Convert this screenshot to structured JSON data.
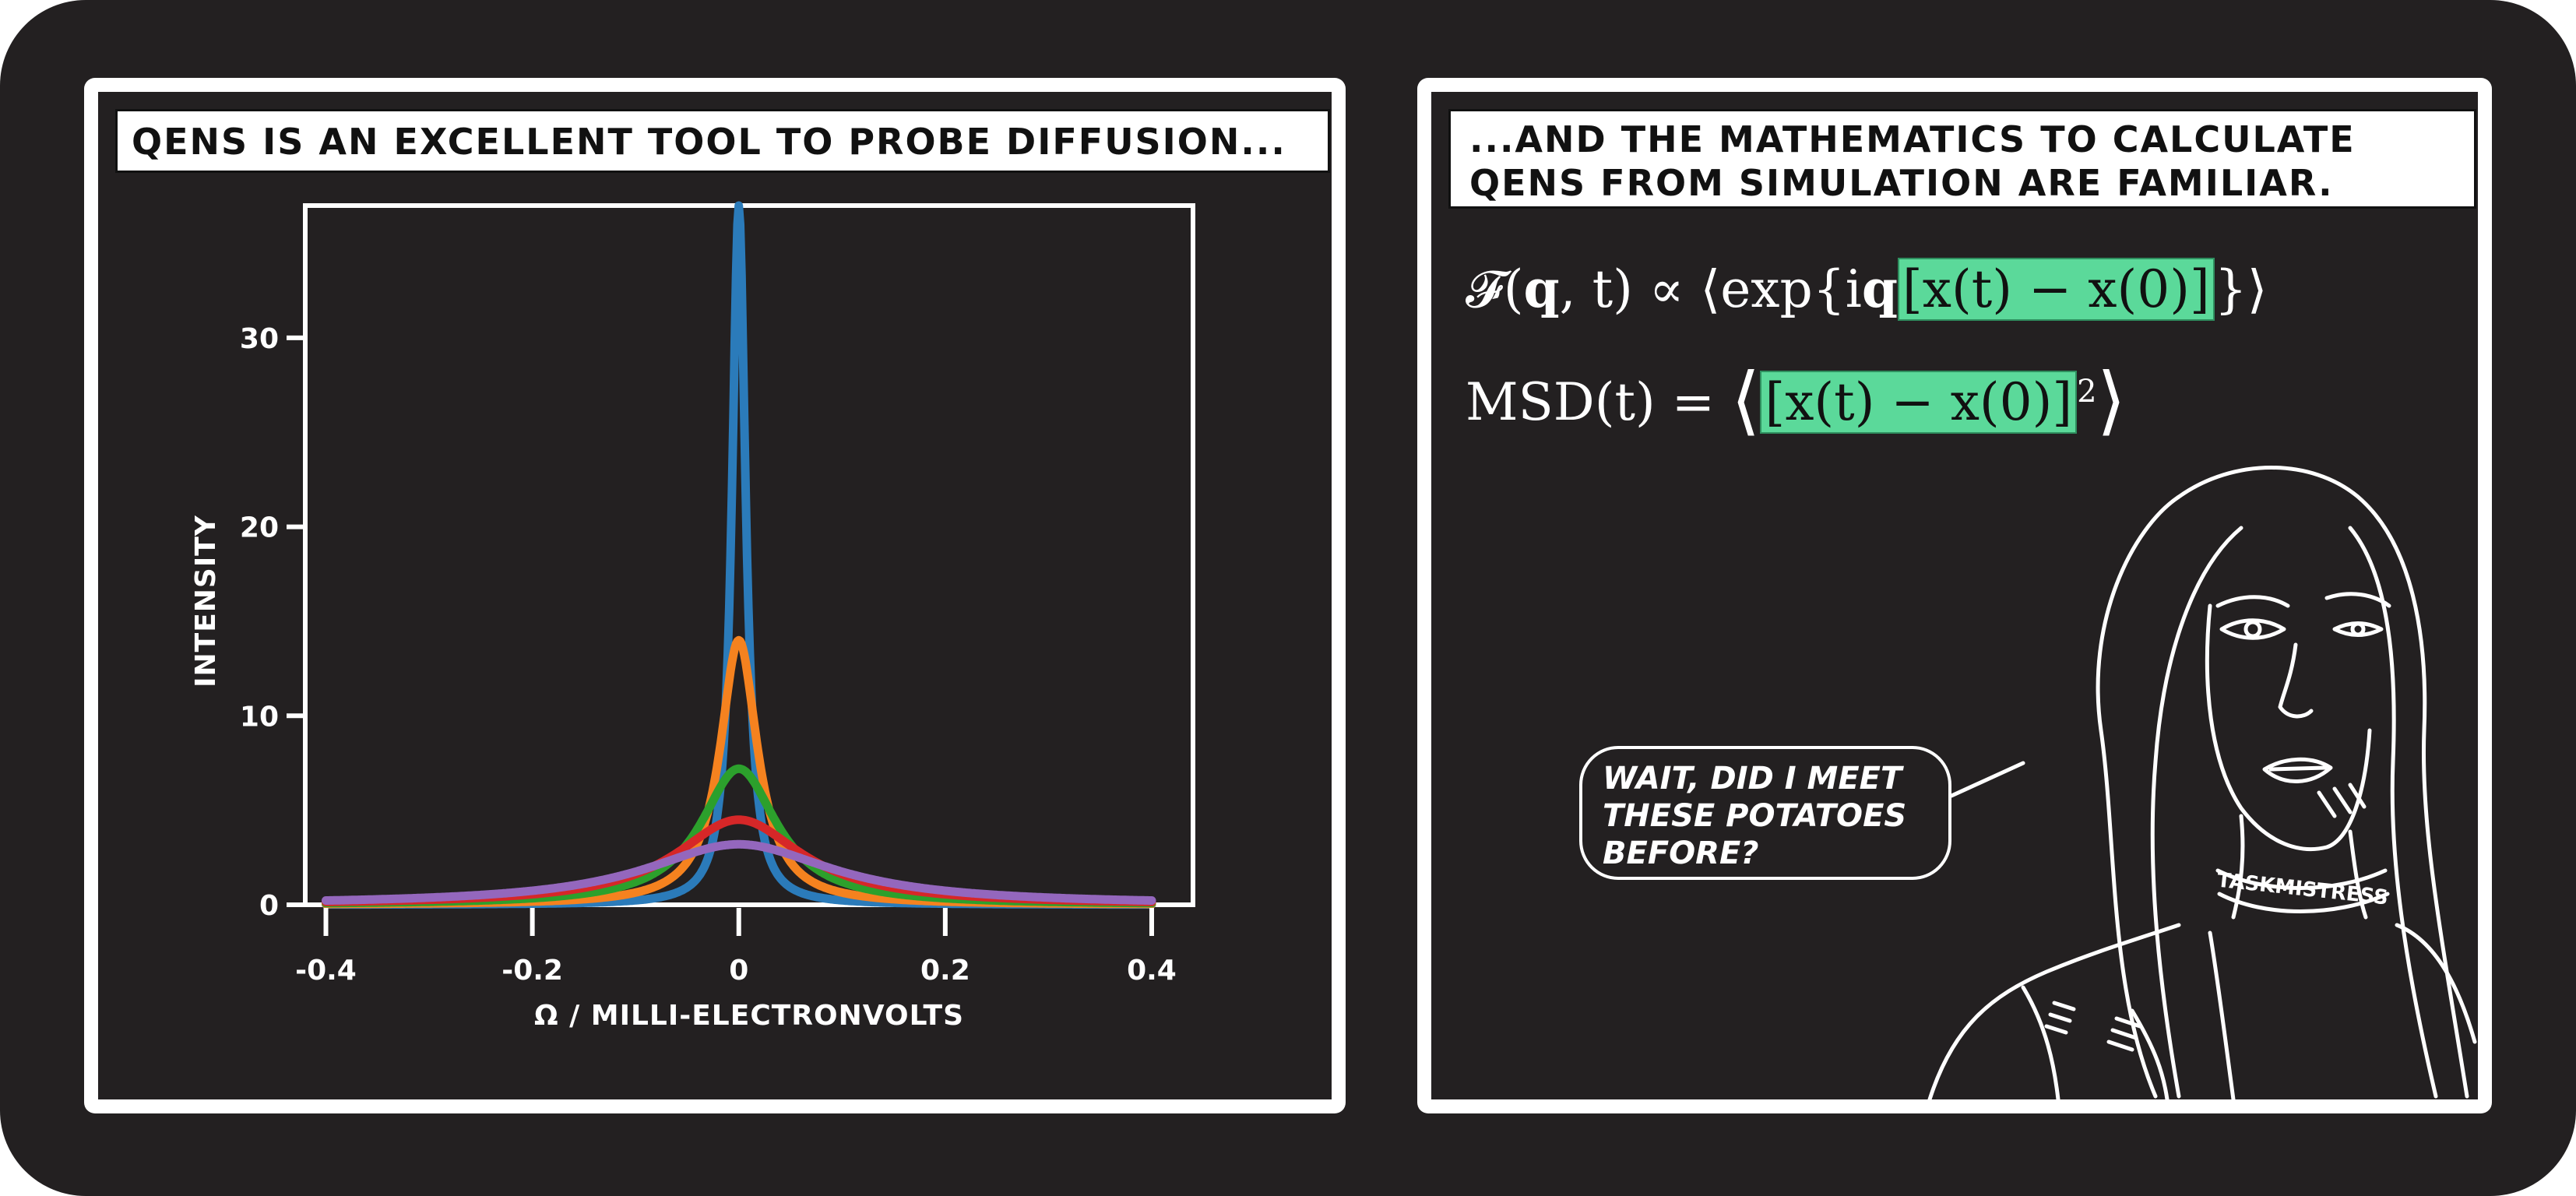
{
  "left_panel": {
    "caption": "QENS IS AN EXCELLENT TOOL TO PROBE DIFFUSION...",
    "chart_data": {
      "type": "line",
      "xlabel": "ω / MILLI-ELECTRONVOLTS",
      "ylabel": "INTENSITY",
      "xlim": [
        -0.42,
        0.44
      ],
      "ylim": [
        0,
        37
      ],
      "x_ticks": [
        -0.4,
        -0.2,
        0,
        0.2,
        0.4
      ],
      "x_tick_labels": [
        "-0.4",
        "-0.2",
        "0",
        "0.2",
        "0.4"
      ],
      "y_ticks": [
        0,
        10,
        20,
        30
      ],
      "y_tick_labels": [
        "0",
        "10",
        "20",
        "30"
      ],
      "grid": false,
      "legend": "none",
      "series": [
        {
          "peak": 37,
          "width": 0.008,
          "color": "#2b7bba"
        },
        {
          "peak": 14,
          "width": 0.022,
          "color": "#f5821f"
        },
        {
          "peak": 7.2,
          "width": 0.045,
          "color": "#2ca02c"
        },
        {
          "peak": 4.5,
          "width": 0.075,
          "color": "#d62728"
        },
        {
          "peak": 3.2,
          "width": 0.11,
          "color": "#9467bd"
        }
      ]
    }
  },
  "right_panel": {
    "caption_line1": "...AND THE MATHEMATICS TO CALCULATE",
    "caption_line2": "QENS FROM SIMULATION ARE FAMILIAR.",
    "eq1": {
      "lhs": "𝓕(",
      "q": "q",
      "mid": ", t) ∝ ⟨exp{i",
      "q2": "q",
      "hl_open": "[",
      "hl_body": "x(t) − x(0)",
      "hl_close": "]",
      "end": "}⟩"
    },
    "eq2": {
      "lhs": "MSD(t) = ",
      "open": "⟨",
      "hl_body": "[x(t) − x(0)]",
      "power": "2",
      "close": "⟩"
    },
    "bubble_line1": "WAIT, DID I MEET",
    "bubble_line2": "THESE POTATOES",
    "bubble_line3": "BEFORE?",
    "necklace_text": "TASKMISTRESS"
  }
}
